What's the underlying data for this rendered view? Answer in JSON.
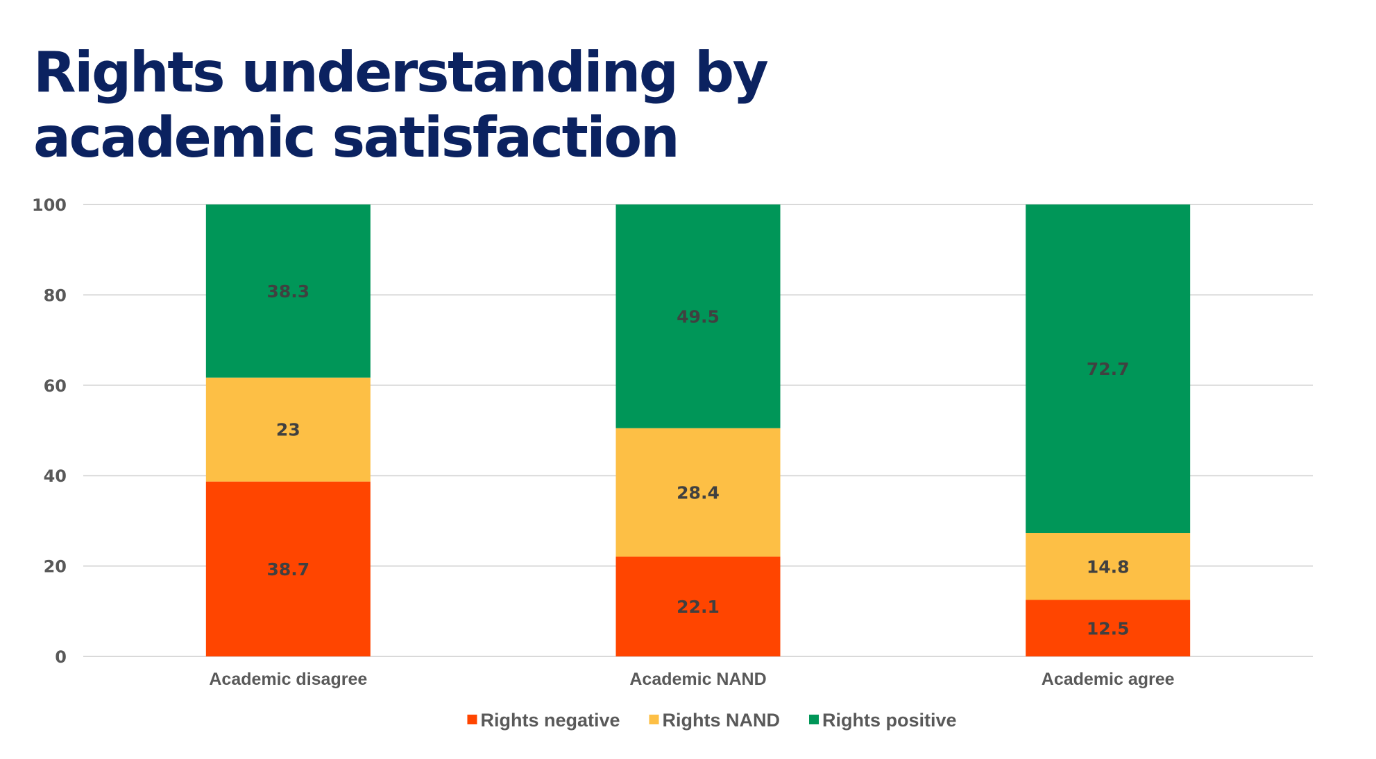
{
  "chart_data": {
    "type": "bar",
    "stacked": true,
    "title": "Rights understanding by\nacademic satisfaction",
    "xlabel": "",
    "ylabel": "",
    "ylim": [
      0,
      100
    ],
    "yticks": [
      0,
      20,
      40,
      60,
      80,
      100
    ],
    "grid": true,
    "legend_position": "bottom",
    "categories": [
      "Academic disagree",
      "Academic NAND",
      "Academic agree"
    ],
    "series": [
      {
        "name": "Rights negative",
        "color": "#ff4500",
        "values": [
          38.7,
          22.1,
          12.5
        ],
        "labels": [
          "38.7",
          "22.1",
          "12.5"
        ]
      },
      {
        "name": "Rights NAND",
        "color": "#fdbf45",
        "values": [
          23,
          28.4,
          14.8
        ],
        "labels": [
          "23",
          "28.4",
          "14.8"
        ]
      },
      {
        "name": "Rights positive",
        "color": "#009658",
        "values": [
          38.3,
          49.5,
          72.7
        ],
        "labels": [
          "38.3",
          "49.5",
          "72.7"
        ]
      }
    ]
  }
}
